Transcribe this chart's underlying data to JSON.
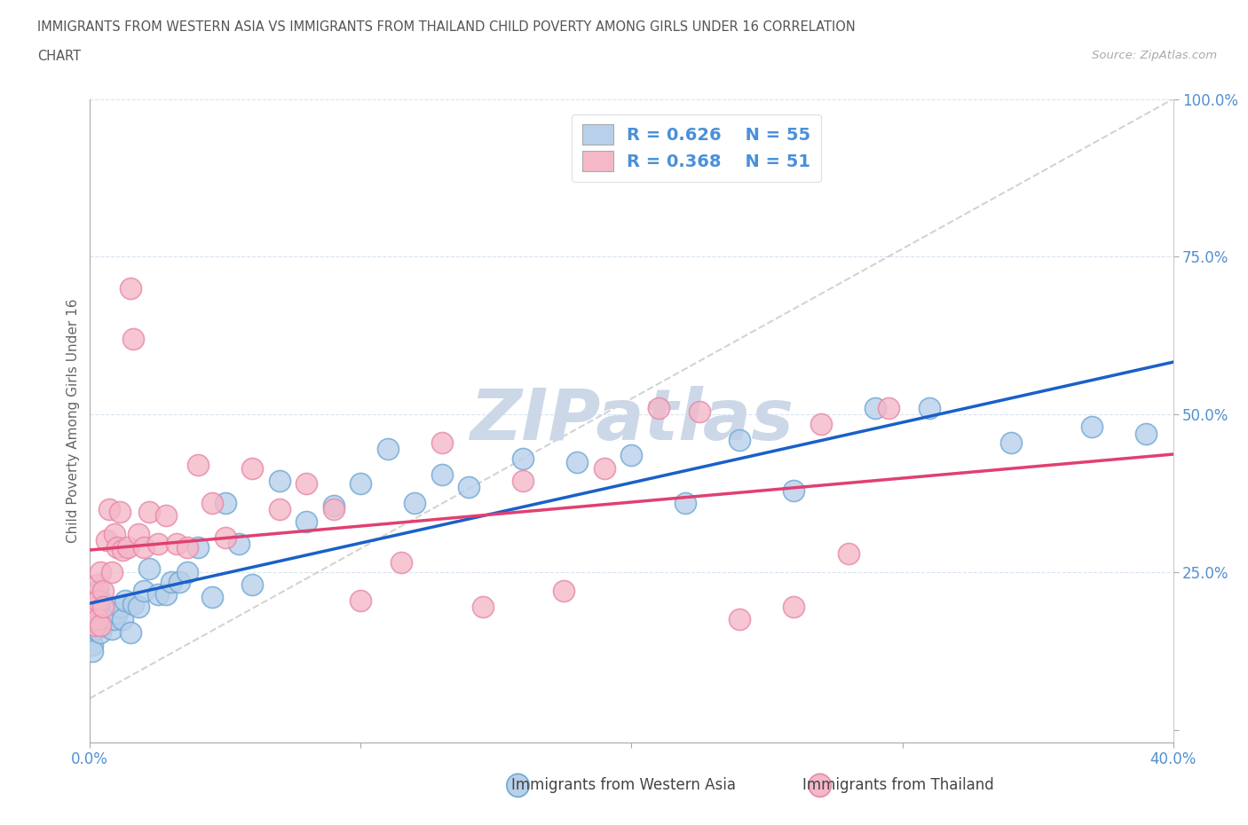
{
  "title_line1": "IMMIGRANTS FROM WESTERN ASIA VS IMMIGRANTS FROM THAILAND CHILD POVERTY AMONG GIRLS UNDER 16 CORRELATION",
  "title_line2": "CHART",
  "source": "Source: ZipAtlas.com",
  "ylabel": "Child Poverty Among Girls Under 16",
  "xlim": [
    0.0,
    0.4
  ],
  "ylim": [
    -0.02,
    1.0
  ],
  "legend_R1": "R = 0.626",
  "legend_N1": "N = 55",
  "legend_R2": "R = 0.368",
  "legend_N2": "N = 51",
  "legend_color1": "#b8d0ea",
  "legend_color2": "#f4b8c8",
  "dot_facecolor1": "#b8d0ea",
  "dot_facecolor2": "#f4b8c8",
  "dot_edgecolor1": "#6ea8d4",
  "dot_edgecolor2": "#e888a8",
  "line_color1": "#1a60c8",
  "line_color2": "#e04070",
  "ref_line_color": "#c8c8c8",
  "watermark_color": "#ccd8e8",
  "grid_color": "#d8e4f0",
  "tick_color": "#5090d0",
  "label_color": "#666666",
  "blue_scatter_x": [
    0.001,
    0.001,
    0.001,
    0.001,
    0.002,
    0.002,
    0.002,
    0.003,
    0.003,
    0.004,
    0.004,
    0.005,
    0.005,
    0.006,
    0.007,
    0.008,
    0.009,
    0.01,
    0.011,
    0.012,
    0.013,
    0.015,
    0.016,
    0.018,
    0.02,
    0.022,
    0.025,
    0.028,
    0.03,
    0.033,
    0.036,
    0.04,
    0.045,
    0.05,
    0.055,
    0.06,
    0.07,
    0.08,
    0.09,
    0.1,
    0.11,
    0.12,
    0.13,
    0.14,
    0.16,
    0.18,
    0.2,
    0.22,
    0.24,
    0.26,
    0.29,
    0.31,
    0.34,
    0.37,
    0.39
  ],
  "blue_scatter_y": [
    0.175,
    0.155,
    0.135,
    0.125,
    0.2,
    0.18,
    0.16,
    0.22,
    0.195,
    0.175,
    0.155,
    0.2,
    0.165,
    0.19,
    0.175,
    0.16,
    0.175,
    0.185,
    0.195,
    0.175,
    0.205,
    0.155,
    0.2,
    0.195,
    0.22,
    0.255,
    0.215,
    0.215,
    0.235,
    0.235,
    0.25,
    0.29,
    0.21,
    0.36,
    0.295,
    0.23,
    0.395,
    0.33,
    0.355,
    0.39,
    0.445,
    0.36,
    0.405,
    0.385,
    0.43,
    0.425,
    0.435,
    0.36,
    0.46,
    0.38,
    0.51,
    0.51,
    0.455,
    0.48,
    0.47
  ],
  "pink_scatter_x": [
    0.001,
    0.001,
    0.001,
    0.002,
    0.002,
    0.002,
    0.003,
    0.003,
    0.003,
    0.004,
    0.004,
    0.005,
    0.005,
    0.006,
    0.007,
    0.008,
    0.009,
    0.01,
    0.011,
    0.012,
    0.014,
    0.015,
    0.016,
    0.018,
    0.02,
    0.022,
    0.025,
    0.028,
    0.032,
    0.036,
    0.04,
    0.045,
    0.05,
    0.06,
    0.07,
    0.08,
    0.09,
    0.1,
    0.115,
    0.13,
    0.145,
    0.16,
    0.175,
    0.19,
    0.21,
    0.225,
    0.24,
    0.26,
    0.27,
    0.28,
    0.295
  ],
  "pink_scatter_y": [
    0.19,
    0.205,
    0.175,
    0.215,
    0.195,
    0.165,
    0.23,
    0.205,
    0.175,
    0.25,
    0.165,
    0.22,
    0.195,
    0.3,
    0.35,
    0.25,
    0.31,
    0.29,
    0.345,
    0.285,
    0.29,
    0.7,
    0.62,
    0.31,
    0.29,
    0.345,
    0.295,
    0.34,
    0.295,
    0.29,
    0.42,
    0.36,
    0.305,
    0.415,
    0.35,
    0.39,
    0.35,
    0.205,
    0.265,
    0.455,
    0.195,
    0.395,
    0.22,
    0.415,
    0.51,
    0.505,
    0.175,
    0.195,
    0.485,
    0.28,
    0.51
  ]
}
